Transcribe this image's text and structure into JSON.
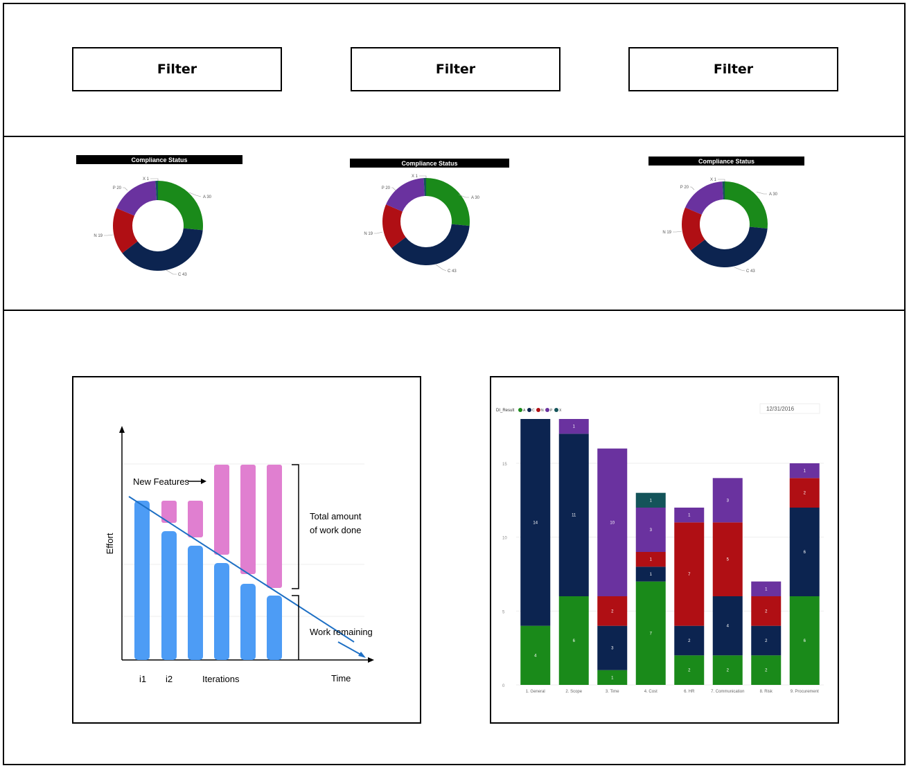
{
  "filters": {
    "label1": "Filter",
    "label2": "Filter",
    "label3": "Filter"
  },
  "donut": {
    "title": "Compliance Status",
    "slices": [
      {
        "key": "A",
        "label": "A 30",
        "value": 30,
        "color": "#1a8a1a"
      },
      {
        "key": "C",
        "label": "C 43",
        "value": 43,
        "color": "#0c2450"
      },
      {
        "key": "N",
        "label": "N 19",
        "value": 19,
        "color": "#b00f14"
      },
      {
        "key": "P",
        "label": "P 20",
        "value": 20,
        "color": "#6a329f"
      },
      {
        "key": "X",
        "label": "X 1",
        "value": 1,
        "color": "#14545a"
      }
    ]
  },
  "burndown": {
    "y_label": "Effort",
    "x_label": "Time",
    "iterations_label": "Iterations",
    "i1": "i1",
    "i2": "i2",
    "new_features": "New Features",
    "total_work_1": "Total amount",
    "total_work_2": "of work done",
    "work_remaining": "Work remaining"
  },
  "chart_data": {
    "type": "bar",
    "stacked": true,
    "legend_title": "DI_Result",
    "date": "12/31/2016",
    "categories": [
      "1. General",
      "2. Scope",
      "3. Time",
      "4. Cost",
      "6. HR",
      "7. Communication",
      "8. Risk",
      "9. Procurement"
    ],
    "ylim": [
      0,
      18
    ],
    "yticks": [
      0,
      5,
      10,
      15
    ],
    "series": [
      {
        "name": "A",
        "color": "#1a8a1a",
        "values": [
          4,
          6,
          1,
          7,
          2,
          2,
          2,
          6
        ]
      },
      {
        "name": "C",
        "color": "#0c2450",
        "values": [
          14,
          11,
          3,
          1,
          2,
          4,
          2,
          6
        ]
      },
      {
        "name": "N",
        "color": "#b00f14",
        "values": [
          0,
          0,
          2,
          1,
          7,
          5,
          2,
          2
        ]
      },
      {
        "name": "P",
        "color": "#6a329f",
        "values": [
          0,
          1,
          10,
          3,
          1,
          3,
          1,
          1
        ]
      },
      {
        "name": "X",
        "color": "#14545a",
        "values": [
          0,
          0,
          0,
          1,
          0,
          0,
          0,
          0
        ]
      }
    ]
  }
}
